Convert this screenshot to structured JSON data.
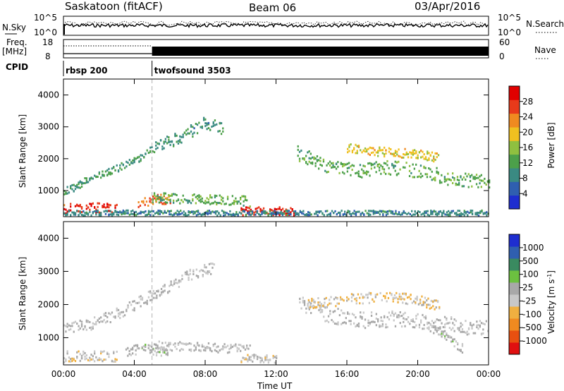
{
  "header": {
    "station": "Saskatoon (fitACF)",
    "beam": "Beam 06",
    "date": "03/Apr/2016"
  },
  "top_panels": {
    "nsky_label": "N.Sky",
    "nsky_ticks": [
      "10^5",
      "10^0"
    ],
    "nsearch_label": "N.Search",
    "nsearch_ticks": [
      "10^5",
      "10^0"
    ],
    "freq_label": "Freq.",
    "freq_unit": "[MHz]",
    "freq_ticks": [
      "18",
      "8"
    ],
    "nave_label": "Nave",
    "nave_ticks": [
      "60",
      "0"
    ],
    "cpid_label": "CPID",
    "cpid_segments": [
      {
        "label": "rbsp 200",
        "start_hour": 0,
        "end_hour": 5
      },
      {
        "label": "twofsound 3503",
        "start_hour": 5,
        "end_hour": 24
      }
    ]
  },
  "colors": {
    "power": [
      "#1e2ed0",
      "#2f5fb0",
      "#3a8a82",
      "#4ca04a",
      "#8fc040",
      "#f0c020",
      "#f08a20",
      "#e83a1a",
      "#e00000"
    ],
    "velocity": [
      "#e01010",
      "#e85010",
      "#f08a20",
      "#f0b040",
      "#c8c8c8",
      "#a8a8a8",
      "#6cc040",
      "#3a8a60",
      "#2f5fb0",
      "#1e2ed0"
    ],
    "ground_scatter": "#b8b8b8"
  },
  "colorbars": {
    "power": {
      "title": "Power [dB]",
      "ticks": [
        "28",
        "24",
        "20",
        "16",
        "12",
        "8",
        "4"
      ]
    },
    "velocity": {
      "title": "Velocity [m s",
      "title_sup": "-1",
      "title_end": "]",
      "ticks": [
        "1000",
        "500",
        "100",
        "25",
        "-25",
        "-100",
        "-500",
        "-1000"
      ]
    }
  },
  "axes": {
    "x_label": "Time UT",
    "x_ticks": [
      "00:00",
      "04:00",
      "08:00",
      "12:00",
      "16:00",
      "20:00",
      "00:00"
    ],
    "y_label": "Slant Range [km]",
    "y_ticks": [
      "4000",
      "3000",
      "2000",
      "1000"
    ]
  },
  "chart_data": {
    "type": "heatmap",
    "title": "",
    "xlabel": "Time UT",
    "ylabel": "Slant Range [km]",
    "xlim": [
      0,
      24
    ],
    "ylim": [
      180,
      4500
    ],
    "panels": [
      {
        "name": "Power [dB]",
        "scale": [
          0,
          30
        ],
        "bands": [
          {
            "x": [
              0.0,
              0.6,
              1.6,
              3.0,
              4.5,
              5.0
            ],
            "y": [
              1000,
              1130,
              1450,
              1720,
              2100,
              2350
            ],
            "width": 110,
            "value": 10
          },
          {
            "x": [
              5.0,
              6.5,
              8.0,
              9.0
            ],
            "y": [
              2350,
              2700,
              3150,
              2950
            ],
            "width": 200,
            "value": 9
          },
          {
            "x": [
              13.2,
              14.8,
              16.5,
              18.5,
              20.5,
              21.8,
              24.0
            ],
            "y": [
              2200,
              1800,
              1650,
              1750,
              1600,
              1400,
              1300
            ],
            "width": 220,
            "value": 12
          },
          {
            "x": [
              16.0,
              18.0,
              20.0,
              21.2
            ],
            "y": [
              2350,
              2250,
              2150,
              2050
            ],
            "width": 150,
            "value": 18
          },
          {
            "x": [
              0.0,
              1.0,
              2.0,
              3.0
            ],
            "y": [
              460,
              470,
              480,
              470
            ],
            "width": 170,
            "value": 26
          },
          {
            "x": [
              4.2,
              5.2,
              6.0
            ],
            "y": [
              600,
              780,
              720
            ],
            "width": 140,
            "value": 24
          },
          {
            "x": [
              5.0,
              7.0,
              9.5,
              10.5
            ],
            "y": [
              820,
              760,
              720,
              690
            ],
            "width": 160,
            "value": 12
          },
          {
            "x": [
              10.0,
              11.0,
              12.0,
              13.0
            ],
            "y": [
              380,
              400,
              390,
              370
            ],
            "width": 130,
            "value": 26
          },
          {
            "x": [
              0.0,
              4.0,
              8.0,
              12.0,
              16.0,
              20.0,
              24.0
            ],
            "y": [
              320,
              330,
              320,
              320,
              330,
              320,
              330
            ],
            "width": 80,
            "value": 8
          }
        ]
      },
      {
        "name": "Velocity [m s-1]",
        "scale": [
          -1000,
          1000
        ],
        "bands": [
          {
            "x": [
              0.0,
              1.6,
              3.0,
              5.0,
              7.0,
              8.5
            ],
            "y": [
              1300,
              1450,
              1750,
              2300,
              2900,
              3150
            ],
            "width": 180,
            "value": 0
          },
          {
            "x": [
              13.3,
              15.0,
              17.0,
              19.0,
              21.0,
              24.0
            ],
            "y": [
              2050,
              1700,
              1550,
              1600,
              1450,
              1300
            ],
            "width": 240,
            "value": 0
          },
          {
            "x": [
              13.8,
              15.5,
              17.5,
              19.5,
              21.2
            ],
            "y": [
              2050,
              2150,
              2250,
              2200,
              2000
            ],
            "width": 160,
            "value": -150
          },
          {
            "x": [
              0.0,
              1.0,
              2.0,
              3.0
            ],
            "y": [
              450,
              470,
              480,
              470
            ],
            "width": 170,
            "value": -80
          },
          {
            "x": [
              3.5,
              4.3,
              5.2,
              6.0
            ],
            "y": [
              600,
              700,
              650,
              600
            ],
            "width": 150,
            "value": 60
          },
          {
            "x": [
              10.0,
              11.0,
              12.0
            ],
            "y": [
              390,
              400,
              390
            ],
            "width": 120,
            "value": -90
          },
          {
            "x": [
              5.0,
              7.0,
              9.5,
              10.5
            ],
            "y": [
              800,
              760,
              700,
              690
            ],
            "width": 140,
            "value": 0
          },
          {
            "x": [
              20.5,
              21.5,
              22.5
            ],
            "y": [
              1400,
              1100,
              700
            ],
            "width": 140,
            "value": 40
          }
        ]
      }
    ]
  }
}
